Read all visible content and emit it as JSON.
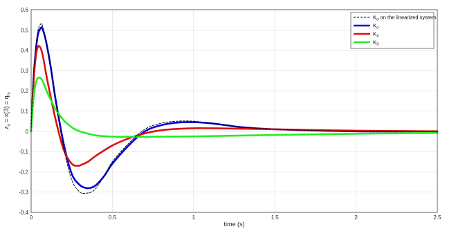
{
  "chart_data": {
    "type": "line",
    "xlabel": "time (s)",
    "ylabel": "z_q = x(3) = q_{f_V}",
    "xlim": [
      0,
      2.5
    ],
    "ylim": [
      -0.4,
      0.6
    ],
    "x_ticks": [
      "0",
      "0.5",
      "1",
      "1.5",
      "2",
      "2.5"
    ],
    "y_ticks": [
      "-0.4",
      "-0.3",
      "-0.2",
      "-0.1",
      "0",
      "0.1",
      "0.2",
      "0.3",
      "0.4",
      "0.5",
      "0.6"
    ],
    "grid": true,
    "legend_position": "top-right",
    "series": [
      {
        "name": "K_σ on the linearized system",
        "legend_main": "K",
        "legend_sub": "σ",
        "legend_rest": " on the linearized system",
        "color": "#000000",
        "style": "dashed",
        "x": [
          0,
          0.01,
          0.02,
          0.04,
          0.06,
          0.07,
          0.09,
          0.12,
          0.15,
          0.2,
          0.25,
          0.3,
          0.34,
          0.37,
          0.4,
          0.45,
          0.5,
          0.6,
          0.7,
          0.8,
          0.9,
          1.0,
          1.1,
          1.2,
          1.3,
          1.5,
          2.0,
          2.5
        ],
        "y": [
          0,
          0.2,
          0.34,
          0.49,
          0.53,
          0.52,
          0.45,
          0.32,
          0.15,
          -0.08,
          -0.24,
          -0.3,
          -0.305,
          -0.3,
          -0.28,
          -0.22,
          -0.15,
          -0.06,
          0.01,
          0.04,
          0.05,
          0.05,
          0.04,
          0.03,
          0.02,
          0.01,
          0.0,
          0.0
        ]
      },
      {
        "name": "K_σ",
        "legend_main": "K",
        "legend_sub": "σ",
        "legend_rest": "",
        "color": "#0000dd",
        "style": "solid",
        "x": [
          0,
          0.01,
          0.02,
          0.04,
          0.06,
          0.07,
          0.09,
          0.12,
          0.15,
          0.2,
          0.25,
          0.3,
          0.34,
          0.37,
          0.4,
          0.45,
          0.5,
          0.6,
          0.7,
          0.8,
          0.9,
          1.0,
          1.1,
          1.2,
          1.3,
          1.5,
          2.0,
          2.5
        ],
        "y": [
          0,
          0.18,
          0.32,
          0.47,
          0.51,
          0.505,
          0.45,
          0.32,
          0.16,
          -0.06,
          -0.21,
          -0.265,
          -0.28,
          -0.278,
          -0.265,
          -0.22,
          -0.16,
          -0.07,
          0.0,
          0.03,
          0.043,
          0.045,
          0.04,
          0.03,
          0.02,
          0.01,
          0.0,
          0.0
        ]
      },
      {
        "name": "K_X",
        "legend_main": "K",
        "legend_sub": "X",
        "legend_rest": "",
        "color": "#dd1111",
        "style": "solid",
        "x": [
          0,
          0.01,
          0.02,
          0.035,
          0.05,
          0.07,
          0.1,
          0.15,
          0.2,
          0.25,
          0.29,
          0.31,
          0.35,
          0.4,
          0.5,
          0.6,
          0.7,
          0.8,
          0.9,
          1.0,
          1.1,
          1.2,
          1.5,
          2.0,
          2.5
        ],
        "y": [
          0,
          0.17,
          0.3,
          0.4,
          0.42,
          0.38,
          0.25,
          0.06,
          -0.09,
          -0.16,
          -0.17,
          -0.165,
          -0.15,
          -0.12,
          -0.07,
          -0.035,
          -0.01,
          0.005,
          0.012,
          0.015,
          0.015,
          0.014,
          0.01,
          0.003,
          0.0
        ]
      },
      {
        "name": "K_S",
        "legend_main": "K",
        "legend_sub": "S",
        "legend_rest": "",
        "color": "#22ee22",
        "style": "solid",
        "x": [
          0,
          0.01,
          0.02,
          0.035,
          0.05,
          0.07,
          0.1,
          0.15,
          0.2,
          0.25,
          0.3,
          0.4,
          0.5,
          0.6,
          0.7,
          1.0,
          1.5,
          2.0,
          2.5
        ],
        "y": [
          0,
          0.12,
          0.2,
          0.255,
          0.265,
          0.25,
          0.19,
          0.11,
          0.055,
          0.02,
          0.0,
          -0.02,
          -0.026,
          -0.027,
          -0.027,
          -0.025,
          -0.018,
          -0.012,
          -0.008
        ]
      }
    ]
  }
}
